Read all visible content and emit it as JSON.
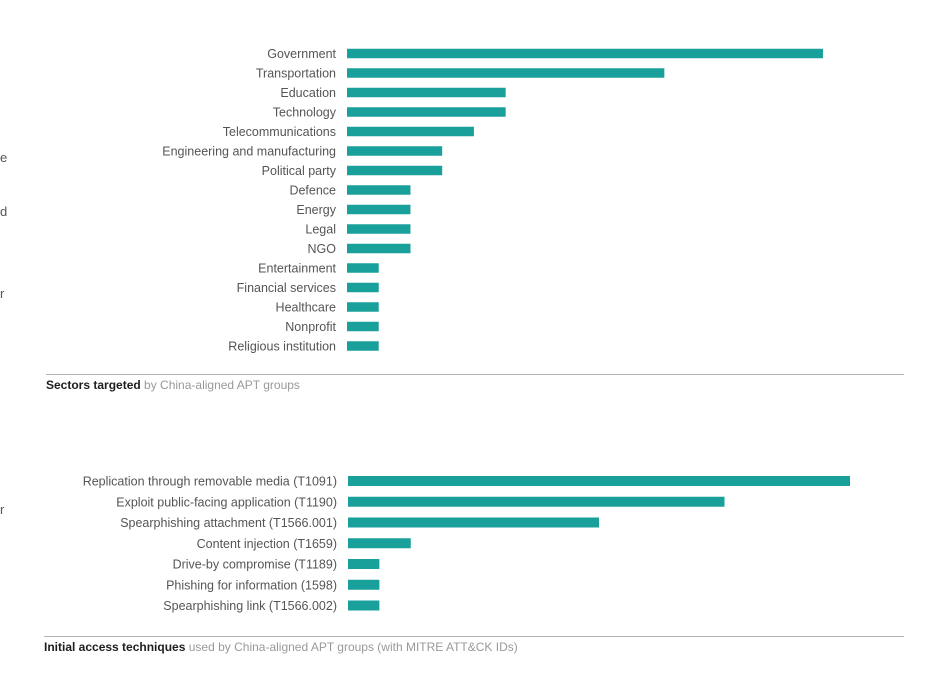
{
  "edge_fragments": [
    "e",
    "d",
    "r",
    "r"
  ],
  "colors": {
    "bar": "#1aa09b",
    "label": "#555555",
    "rule": "#b4b4b4"
  },
  "charts": [
    {
      "caption_bold": "Sectors targeted",
      "caption_rest": " by China-aligned APT groups"
    },
    {
      "caption_bold": "Initial access techniques",
      "caption_rest": " used by China-aligned APT groups (with MITRE ATT&CK IDs)"
    }
  ],
  "chart_data": [
    {
      "type": "bar",
      "orientation": "horizontal",
      "title": "Sectors targeted by China-aligned APT groups",
      "categories": [
        "Government",
        "Transportation",
        "Education",
        "Technology",
        "Telecommunications",
        "Engineering and manufacturing",
        "Political party",
        "Defence",
        "Energy",
        "Legal",
        "NGO",
        "Entertainment",
        "Financial services",
        "Healthcare",
        "Nonprofit",
        "Religious institution"
      ],
      "values": [
        15,
        10,
        5,
        5,
        4,
        3,
        3,
        2,
        2,
        2,
        2,
        1,
        1,
        1,
        1,
        1
      ],
      "xlim": [
        0,
        15
      ],
      "grid": false,
      "legend": "none"
    },
    {
      "type": "bar",
      "orientation": "horizontal",
      "title": "Initial access techniques used by China-aligned APT groups (with MITRE ATT&CK IDs)",
      "categories": [
        "Replication through removable media (T1091)",
        "Exploit public-facing application (T1190)",
        "Spearphishing attachment (T1566.001)",
        "Content injection (T1659)",
        "Drive-by compromise (T1189)",
        "Phishing for information (1598)",
        "Spearphishing link (T1566.002)"
      ],
      "values": [
        16,
        12,
        8,
        2,
        1,
        1,
        1
      ],
      "xlim": [
        0,
        16
      ],
      "grid": false,
      "legend": "none"
    }
  ]
}
